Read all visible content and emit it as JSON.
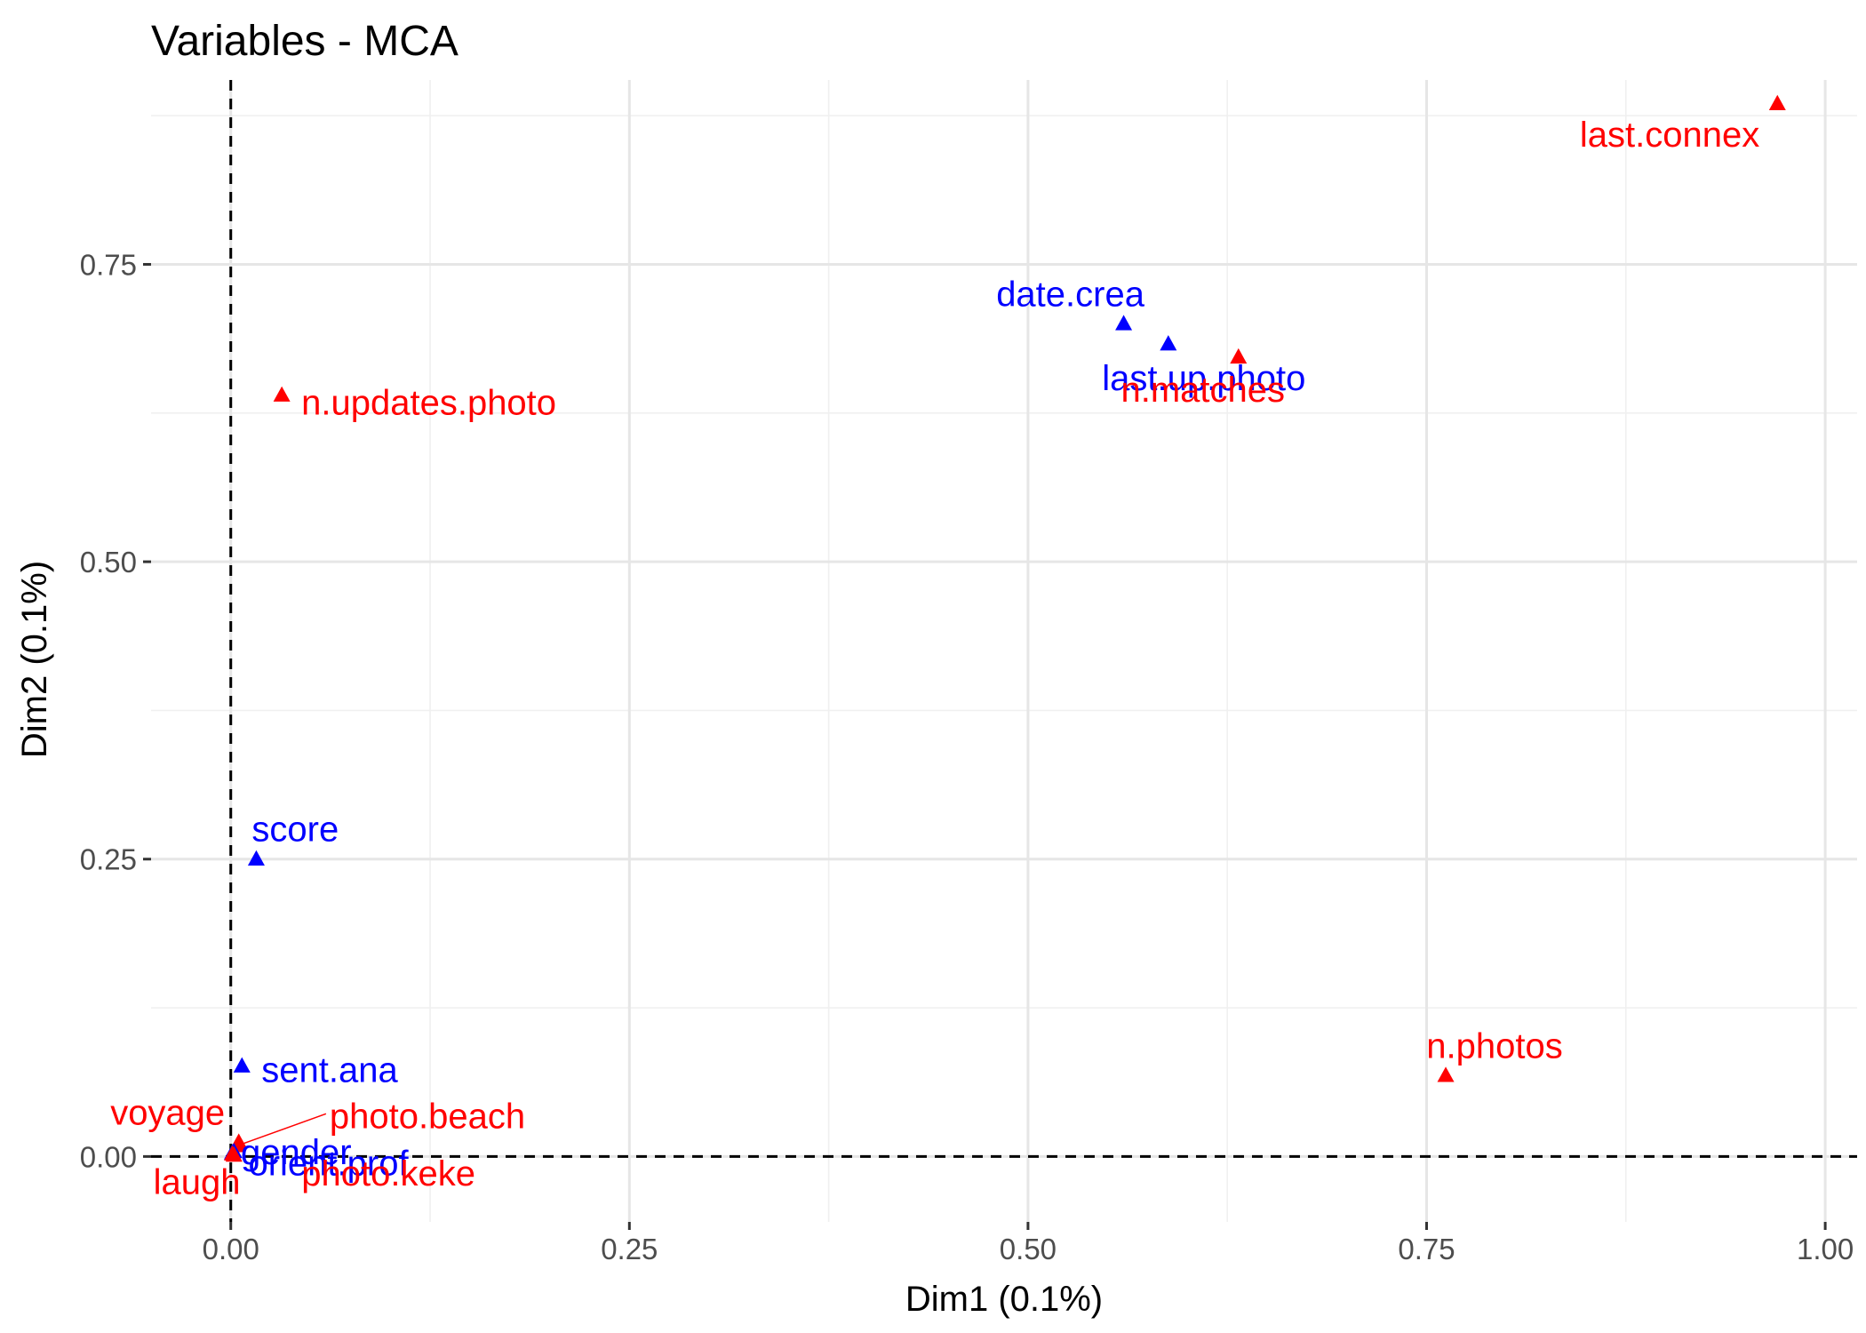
{
  "chart_data": {
    "type": "scatter",
    "title": "Variables - MCA",
    "xlabel": "Dim1 (0.1%)",
    "ylabel": "Dim2 (0.1%)",
    "xlim": [
      -0.05,
      1.02
    ],
    "ylim": [
      -0.055,
      0.905
    ],
    "xticks": [
      {
        "value": 0.0,
        "label": "0.00"
      },
      {
        "value": 0.25,
        "label": "0.25"
      },
      {
        "value": 0.5,
        "label": "0.50"
      },
      {
        "value": 0.75,
        "label": "0.75"
      },
      {
        "value": 1.0,
        "label": "1.00"
      }
    ],
    "yticks": [
      {
        "value": 0.0,
        "label": "0.00"
      },
      {
        "value": 0.25,
        "label": "0.25"
      },
      {
        "value": 0.5,
        "label": "0.50"
      },
      {
        "value": 0.75,
        "label": "0.75"
      }
    ],
    "grid": true,
    "reference_lines": {
      "x": 0,
      "y": 0,
      "style": "dashed"
    },
    "marker": "triangle",
    "colors": {
      "red_group": "#ff0000",
      "blue_group": "#0000ff"
    },
    "points": [
      {
        "label": "last.connex",
        "x": 0.97,
        "y": 0.885,
        "color": "#ff0000"
      },
      {
        "label": "date.crea",
        "x": 0.56,
        "y": 0.7,
        "color": "#0000ff"
      },
      {
        "label": "last.up.photo",
        "x": 0.588,
        "y": 0.683,
        "color": "#0000ff"
      },
      {
        "label": "n.matches",
        "x": 0.632,
        "y": 0.672,
        "color": "#ff0000"
      },
      {
        "label": "n.updates.photo",
        "x": 0.032,
        "y": 0.64,
        "color": "#ff0000"
      },
      {
        "label": "score",
        "x": 0.016,
        "y": 0.25,
        "color": "#0000ff"
      },
      {
        "label": "n.photos",
        "x": 0.762,
        "y": 0.068,
        "color": "#ff0000"
      },
      {
        "label": "sent.ana",
        "x": 0.007,
        "y": 0.076,
        "color": "#0000ff"
      },
      {
        "label": "voyage",
        "x": 0.005,
        "y": 0.012,
        "color": "#ff0000"
      },
      {
        "label": "photo.beach",
        "x": 0.004,
        "y": 0.009,
        "color": "#ff0000"
      },
      {
        "label": "gender",
        "x": 0.002,
        "y": 0.004,
        "color": "#0000ff"
      },
      {
        "label": "orient.prof",
        "x": 0.001,
        "y": 0.003,
        "color": "#0000ff"
      },
      {
        "label": "laugh",
        "x": 0.001,
        "y": 0.002,
        "color": "#ff0000"
      },
      {
        "label": "photo.keke",
        "x": 0.002,
        "y": 0.001,
        "color": "#ff0000"
      }
    ]
  }
}
